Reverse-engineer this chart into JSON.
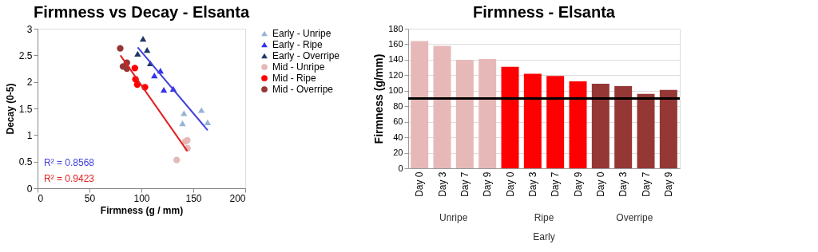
{
  "chart_data": [
    {
      "type": "scatter",
      "title": "Firmness vs Decay - Elsanta",
      "xlabel": "Firmness (g / mm)",
      "ylabel": "Decay (0-5)",
      "xlim": [
        0,
        200
      ],
      "xticks": [
        0,
        50,
        100,
        150,
        200
      ],
      "ylim": [
        0,
        3
      ],
      "yticks": [
        0,
        0.5,
        1,
        1.5,
        2,
        2.5,
        3
      ],
      "grid": false,
      "legend": "right",
      "series": [
        {
          "name": "Early - Unripe",
          "color": "#95b3d7",
          "marker": "triangle",
          "x": [
            141,
            139.6,
            157.8,
            163.8
          ],
          "values": [
            1.41,
            1.22,
            1.47,
            1.24
          ]
        },
        {
          "name": "Early - Ripe",
          "color": "#3333ee",
          "marker": "triangle",
          "x": [
            118.3,
            112.5,
            121.6,
            130.7
          ],
          "values": [
            2.21,
            2.12,
            1.85,
            1.87
          ]
        },
        {
          "name": "Early - Overripe",
          "color": "#1f3864",
          "marker": "triangle",
          "x": [
            101.6,
            96.4,
            105.5,
            108.6
          ],
          "values": [
            2.81,
            2.53,
            2.6,
            2.35
          ]
        },
        {
          "name": "Mid - Unripe",
          "color": "#e6b9b8",
          "marker": "circle",
          "x": [
            134,
            144.2,
            142.3,
            144.4
          ],
          "values": [
            0.53,
            0.9,
            0.88,
            0.75
          ]
        },
        {
          "name": "Mid - Ripe",
          "color": "#ff0000",
          "marker": "circle",
          "x": [
            93.7,
            94.3,
            96,
            103.4
          ],
          "values": [
            2.26,
            2.05,
            1.95,
            1.9
          ]
        },
        {
          "name": "Mid - Overripe",
          "color": "#953735",
          "marker": "circle",
          "x": [
            79.6,
            82.3,
            86,
            86
          ],
          "values": [
            2.63,
            2.29,
            2.36,
            2.25
          ]
        },
        {
          "type": "line",
          "color": "#4040dd",
          "x": [
            96.4,
            163.8
          ],
          "values": [
            2.65,
            1.09
          ]
        },
        {
          "type": "line",
          "color": "#e02020",
          "x": [
            79.8,
            144.2
          ],
          "values": [
            2.5,
            0.7
          ]
        }
      ],
      "annotations": [
        "R² = 0.8568",
        "R² = 0.9423"
      ]
    },
    {
      "type": "bar",
      "title": "Firmness - Elsanta",
      "ylabel": "Firmness (g/mm)",
      "categories": [
        "Day 0",
        "Day 3",
        "Day 7",
        "Day 9",
        "Day 0",
        "Day 3",
        "Day 7",
        "Day 9",
        "Day 0",
        "Day 3",
        "Day 7",
        "Day 9"
      ],
      "values": [
        164,
        158,
        140,
        141,
        131,
        122,
        119,
        112,
        109,
        106,
        96,
        101
      ],
      "colors": [
        "#e6b9b8",
        "#e6b9b8",
        "#e6b9b8",
        "#e6b9b8",
        "#ff0000",
        "#ff0000",
        "#ff0000",
        "#ff0000",
        "#953735",
        "#953735",
        "#953735",
        "#953735"
      ],
      "ylim": [
        0,
        180
      ],
      "yticks": [
        0,
        20,
        40,
        60,
        80,
        100,
        120,
        140,
        160,
        180
      ],
      "grid": "y",
      "ref_lines": [
        {
          "axis": "y",
          "value": 90,
          "color": "#000000"
        }
      ],
      "annotations": [
        "Unripe",
        "Ripe",
        "Overripe",
        "Early"
      ]
    }
  ]
}
